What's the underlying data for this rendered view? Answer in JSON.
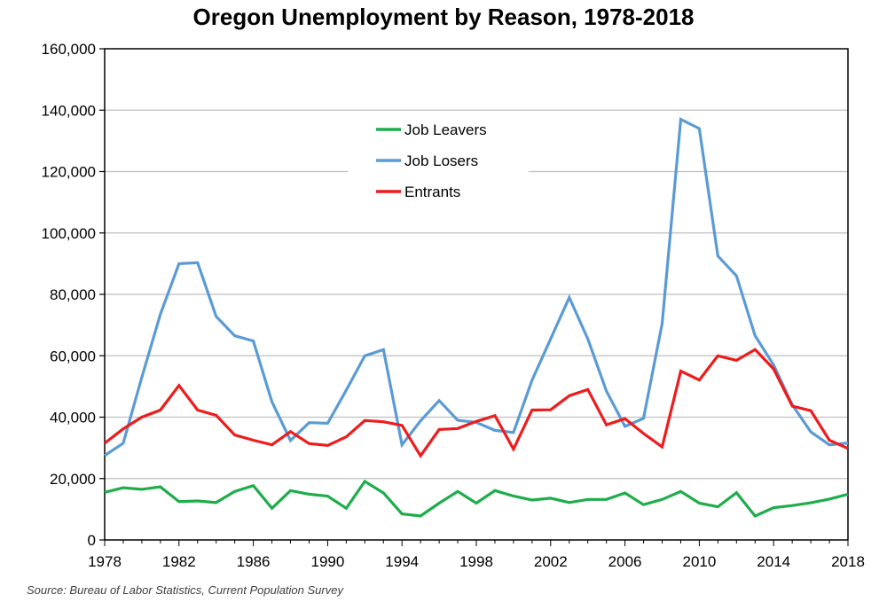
{
  "chart_data": {
    "type": "line",
    "title": "Oregon Unemployment by Reason, 1978-2018",
    "source": "Source: Bureau of Labor Statistics, Current Population Survey",
    "xlim": [
      1978,
      2018
    ],
    "ylim": [
      0,
      160000
    ],
    "x_ticks": [
      "1978",
      "1982",
      "1986",
      "1990",
      "1994",
      "1998",
      "2002",
      "2006",
      "2010",
      "2014",
      "2018"
    ],
    "x_tick_values": [
      1978,
      1982,
      1986,
      1990,
      1994,
      1998,
      2002,
      2006,
      2010,
      2014,
      2018
    ],
    "y_ticks": [
      "0",
      "20,000",
      "40,000",
      "60,000",
      "80,000",
      "100,000",
      "120,000",
      "140,000",
      "160,000"
    ],
    "y_tick_values": [
      0,
      20000,
      40000,
      60000,
      80000,
      100000,
      120000,
      140000,
      160000
    ],
    "grid": true,
    "legend_position": "top-center",
    "x": [
      1978,
      1979,
      1980,
      1981,
      1982,
      1983,
      1984,
      1985,
      1986,
      1987,
      1988,
      1989,
      1990,
      1991,
      1992,
      1993,
      1994,
      1995,
      1996,
      1997,
      1998,
      1999,
      2000,
      2001,
      2002,
      2003,
      2004,
      2005,
      2006,
      2007,
      2008,
      2009,
      2010,
      2011,
      2012,
      2013,
      2014,
      2015,
      2016,
      2017,
      2018
    ],
    "series": [
      {
        "name": "Job Leavers",
        "color": "#1fad4b",
        "values": [
          15500,
          17000,
          16500,
          17300,
          12500,
          12700,
          12200,
          15800,
          17700,
          10300,
          16100,
          14900,
          14300,
          10300,
          19100,
          15300,
          8500,
          7800,
          12000,
          15800,
          12000,
          16100,
          14300,
          13000,
          13600,
          12200,
          13200,
          13200,
          15300,
          11500,
          13200,
          15800,
          12000,
          10800,
          15400,
          7800,
          10500,
          11200,
          12100,
          13300,
          14900
        ]
      },
      {
        "name": "Job Losers",
        "color": "#5b9bd5",
        "values": [
          27500,
          31500,
          53000,
          73500,
          90000,
          90300,
          72800,
          66500,
          64800,
          45000,
          32400,
          38200,
          38000,
          48800,
          60000,
          62000,
          31000,
          38800,
          45400,
          39000,
          38300,
          35700,
          35000,
          52000,
          65500,
          79000,
          65500,
          48500,
          37000,
          39600,
          70500,
          137000,
          134000,
          92500,
          86000,
          66500,
          57000,
          44000,
          35200,
          31000,
          31600
        ]
      },
      {
        "name": "Entrants",
        "color": "#ee1c1c",
        "values": [
          31500,
          36200,
          40000,
          42300,
          50300,
          42300,
          40600,
          34200,
          32500,
          31000,
          35300,
          31400,
          30800,
          33600,
          38900,
          38500,
          37300,
          27400,
          36000,
          36300,
          38600,
          40500,
          29600,
          42300,
          42400,
          47000,
          49000,
          37500,
          39500,
          34700,
          30300,
          55000,
          52100,
          60000,
          58500,
          62000,
          55700,
          43600,
          42100,
          32500,
          29800
        ]
      }
    ]
  }
}
